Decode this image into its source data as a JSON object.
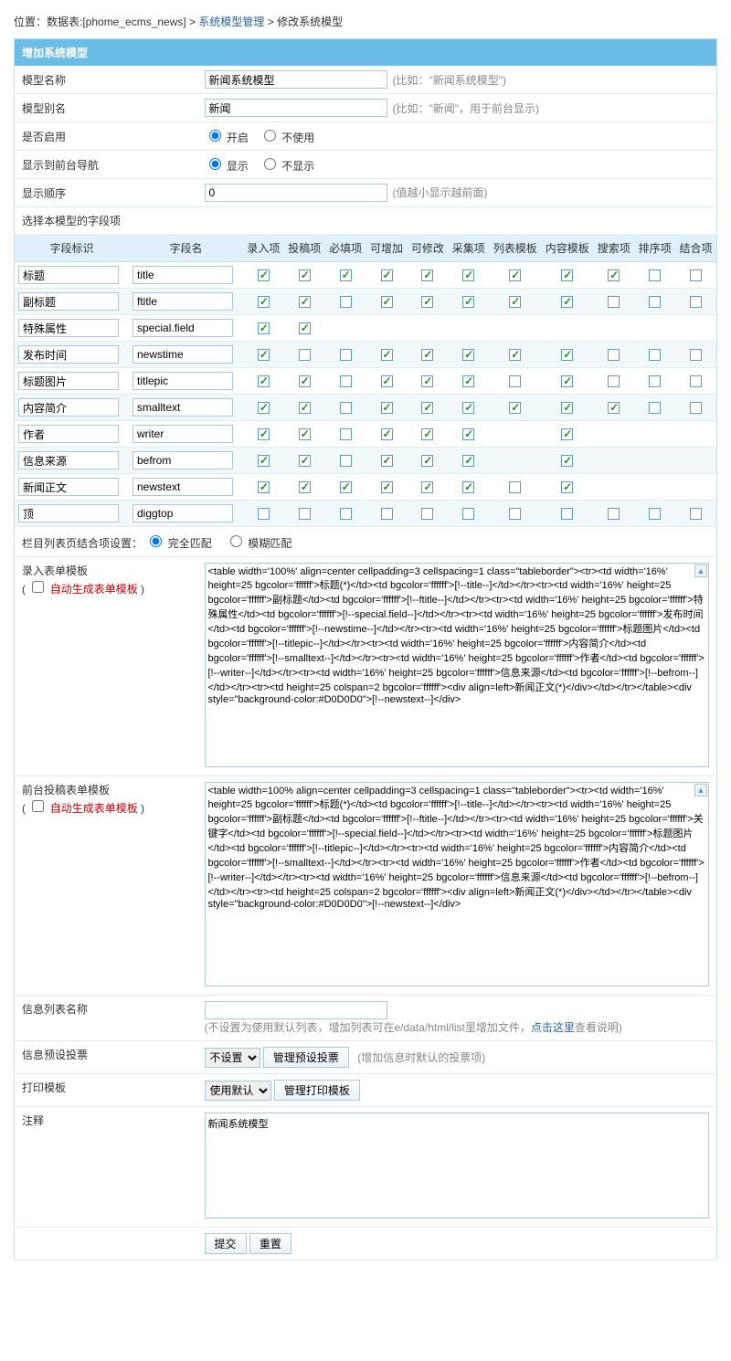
{
  "breadcrumb": {
    "prefix": "位置：数据表:[phome_ecms_news] > ",
    "link1": "系统模型管理",
    "sep": " > ",
    "current": "修改系统模型"
  },
  "header": "增加系统模型",
  "form": {
    "model_name_label": "模型名称",
    "model_name_value": "新闻系统模型",
    "model_name_hint": "(比如：\"新闻系统模型\")",
    "model_alias_label": "模型别名",
    "model_alias_value": "新闻",
    "model_alias_hint": "(比如：\"新闻\"，用于前台显示)",
    "enable_label": "是否启用",
    "enable_on": "开启",
    "enable_off": "不使用",
    "nav_label": "显示到前台导航",
    "nav_show": "显示",
    "nav_hide": "不显示",
    "order_label": "显示顺序",
    "order_value": "0",
    "order_hint": "(值越小显示越前面)",
    "field_section": "选择本模型的字段项"
  },
  "field_headers": [
    "字段标识",
    "字段名",
    "录入项",
    "投稿项",
    "必填项",
    "可增加",
    "可修改",
    "采集项",
    "列表模板",
    "内容模板",
    "搜索项",
    "排序项",
    "结合项"
  ],
  "fields": [
    {
      "tag": "标题",
      "name": "title",
      "c": [
        1,
        1,
        1,
        1,
        1,
        1,
        1,
        1,
        1,
        0,
        0
      ]
    },
    {
      "tag": "副标题",
      "name": "ftitle",
      "c": [
        1,
        1,
        0,
        1,
        1,
        1,
        1,
        1,
        0,
        0,
        0
      ]
    },
    {
      "tag": "特殊属性",
      "name": "special.field",
      "c": [
        1,
        1,
        null,
        null,
        null,
        null,
        null,
        null,
        null,
        null,
        null
      ]
    },
    {
      "tag": "发布时间",
      "name": "newstime",
      "c": [
        1,
        0,
        0,
        1,
        1,
        1,
        1,
        1,
        0,
        0,
        0
      ]
    },
    {
      "tag": "标题图片",
      "name": "titlepic",
      "c": [
        1,
        1,
        0,
        1,
        1,
        1,
        0,
        1,
        0,
        0,
        0
      ]
    },
    {
      "tag": "内容简介",
      "name": "smalltext",
      "c": [
        1,
        1,
        0,
        1,
        1,
        1,
        1,
        1,
        1,
        0,
        0
      ]
    },
    {
      "tag": "作者",
      "name": "writer",
      "c": [
        1,
        1,
        0,
        1,
        1,
        1,
        null,
        1,
        null,
        null,
        null
      ]
    },
    {
      "tag": "信息来源",
      "name": "befrom",
      "c": [
        1,
        1,
        0,
        1,
        1,
        1,
        null,
        1,
        null,
        null,
        null
      ]
    },
    {
      "tag": "新闻正文",
      "name": "newstext",
      "c": [
        1,
        1,
        1,
        1,
        1,
        1,
        0,
        1,
        null,
        null,
        null
      ]
    },
    {
      "tag": "顶",
      "name": "diggtop",
      "c": [
        0,
        0,
        0,
        0,
        0,
        0,
        0,
        0,
        0,
        0,
        0
      ]
    }
  ],
  "combine": {
    "label": "栏目列表页结合项设置：",
    "opt1": "完全匹配",
    "opt2": "模糊匹配"
  },
  "tpl1": {
    "label": "录入表单模板",
    "auto": "自动生成表单模板",
    "value": "<table width='100%' align=center cellpadding=3 cellspacing=1 class=\"tableborder\"><tr><td width='16%' height=25 bgcolor='ffffff'>标题(*)</td><td bgcolor='ffffff'>[!--title--]</td></tr><tr><td width='16%' height=25 bgcolor='ffffff'>副标题</td><td bgcolor='ffffff'>[!--ftitle--]</td></tr><tr><td width='16%' height=25 bgcolor='ffffff'>特殊属性</td><td bgcolor='ffffff'>[!--special.field--]</td></tr><tr><td width='16%' height=25 bgcolor='ffffff'>发布时间</td><td bgcolor='ffffff'>[!--newstime--]</td></tr><tr><td width='16%' height=25 bgcolor='ffffff'>标题图片</td><td bgcolor='ffffff'>[!--titlepic--]</td></tr><tr><td width='16%' height=25 bgcolor='ffffff'>内容简介</td><td bgcolor='ffffff'>[!--smalltext--]</td></tr><tr><td width='16%' height=25 bgcolor='ffffff'>作者</td><td bgcolor='ffffff'>[!--writer--]</td></tr><tr><td width='16%' height=25 bgcolor='ffffff'>信息来源</td><td bgcolor='ffffff'>[!--befrom--]</td></tr><tr><td height=25 colspan=2 bgcolor='ffffff'><div align=left>新闻正文(*)</div></td></tr></table><div style=\"background-color:#D0D0D0\">[!--newstext--]</div>"
  },
  "tpl2": {
    "label": "前台投稿表单模板",
    "auto": "自动生成表单模板",
    "value": "<table width=100% align=center cellpadding=3 cellspacing=1 class=\"tableborder\"><tr><td width='16%' height=25 bgcolor='ffffff'>标题(*)</td><td bgcolor='ffffff'>[!--title--]</td></tr><tr><td width='16%' height=25 bgcolor='ffffff'>副标题</td><td bgcolor='ffffff'>[!--ftitle--]</td></tr><tr><td width='16%' height=25 bgcolor='ffffff'>关键字</td><td bgcolor='ffffff'>[!--special.field--]</td></tr><tr><td width='16%' height=25 bgcolor='ffffff'>标题图片</td><td bgcolor='ffffff'>[!--titlepic--]</td></tr><tr><td width='16%' height=25 bgcolor='ffffff'>内容简介</td><td bgcolor='ffffff'>[!--smalltext--]</td></tr><tr><td width='16%' height=25 bgcolor='ffffff'>作者</td><td bgcolor='ffffff'>[!--writer--]</td></tr><tr><td width='16%' height=25 bgcolor='ffffff'>信息来源</td><td bgcolor='ffffff'>[!--befrom--]</td></tr><tr><td height=25 colspan=2 bgcolor='ffffff'><div align=left>新闻正文(*)</div></td></tr></table><div style=\"background-color:#D0D0D0\">[!--newstext--]</div>"
  },
  "list_name": {
    "label": "信息列表名称",
    "hint_pre": "(不设置为使用默认列表，增加列表可在e/data/html/list里增加文件，",
    "hint_link": "点击这里",
    "hint_post": "查看说明)"
  },
  "vote": {
    "label": "信息预设投票",
    "select": "不设置",
    "btn": "管理预设投票",
    "hint": "(增加信息时默认的投票项)"
  },
  "print": {
    "label": "打印模板",
    "select": "使用默认",
    "btn": "管理打印模板"
  },
  "note": {
    "label": "注释",
    "value": "新闻系统模型"
  },
  "buttons": {
    "submit": "提交",
    "reset": "重置"
  }
}
